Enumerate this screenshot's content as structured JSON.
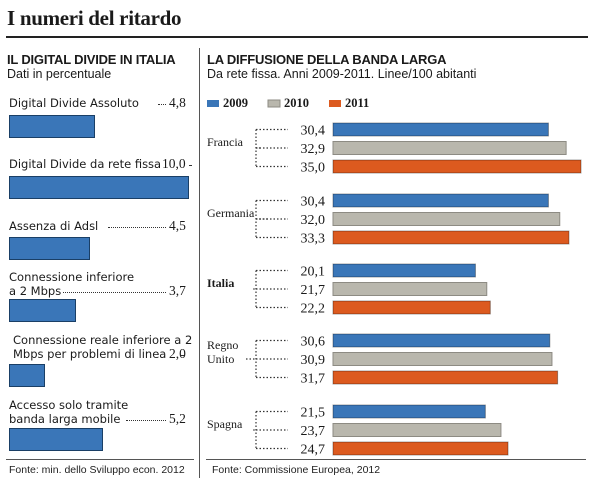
{
  "title": "I numeri del ritardo",
  "left": {
    "title": "IL DIGITAL DIVIDE IN ITALIA",
    "subtitle": "Dati in percentuale",
    "source": "Fonte: min. dello Sviluppo econ. 2012",
    "bar_color": "#3a76b8"
  },
  "right": {
    "title": "LA DIFFUSIONE DELLA BANDA LARGA",
    "subtitle": "Da rete fissa. Anni 2009-2011. Linee/100 abitanti",
    "source": "Fonte: Commissione Europea, 2012"
  },
  "chart_data": [
    {
      "type": "bar",
      "orientation": "horizontal",
      "title": "IL DIGITAL DIVIDE IN ITALIA",
      "subtitle": "Dati in percentuale",
      "categories": [
        "Digital Divide Assoluto",
        "Digital Divide da rete fissa",
        "Assenza di Adsl",
        "Connessione inferiore a 2 Mbps",
        "Connessione reale inferiore a 2 Mbps per problemi di linea",
        "Accesso solo tramite banda larga mobile"
      ],
      "category_lines": [
        [
          "Digital Divide Assoluto"
        ],
        [
          "Digital Divide da rete fissa"
        ],
        [
          "Assenza di Adsl"
        ],
        [
          "Connessione inferiore",
          "a 2 Mbps"
        ],
        [
          "Connessione reale inferiore a 2",
          "Mbps per problemi di linea"
        ],
        [
          "Accesso solo tramite",
          "banda larga mobile"
        ]
      ],
      "values": [
        4.8,
        10.0,
        4.5,
        3.7,
        2.0,
        5.2
      ],
      "value_labels": [
        "4,8",
        "10,0",
        "4,5",
        "3,7",
        "2,0",
        "5,2"
      ],
      "xlim": [
        0,
        10
      ]
    },
    {
      "type": "bar",
      "orientation": "horizontal",
      "title": "LA DIFFUSIONE DELLA BANDA LARGA",
      "subtitle": "Da rete fissa. Anni 2009-2011. Linee/100 abitanti",
      "categories": [
        "Francia",
        "Germania",
        "Italia",
        "Regno Unito",
        "Spagna"
      ],
      "category_lines": [
        [
          "Francia"
        ],
        [
          "Germania"
        ],
        [
          "Italia"
        ],
        [
          "Regno",
          "Unito"
        ],
        [
          "Spagna"
        ]
      ],
      "series": [
        {
          "name": "2009",
          "color": "#3a76b8",
          "values": [
            30.4,
            30.4,
            20.1,
            30.6,
            21.5
          ],
          "labels": [
            "30,4",
            "30,4",
            "20,1",
            "30,6",
            "21,5"
          ]
        },
        {
          "name": "2010",
          "color": "#b9b7ad",
          "values": [
            32.9,
            32.0,
            21.7,
            30.9,
            23.7
          ],
          "labels": [
            "32,9",
            "32,0",
            "21,7",
            "30,9",
            "23,7"
          ]
        },
        {
          "name": "2011",
          "color": "#dc5a1f",
          "values": [
            35.0,
            33.3,
            22.2,
            31.7,
            24.7
          ],
          "labels": [
            "35,0",
            "33,3",
            "22,2",
            "31,7",
            "24,7"
          ]
        }
      ],
      "xlim": [
        0,
        35
      ],
      "legend": "top"
    }
  ]
}
